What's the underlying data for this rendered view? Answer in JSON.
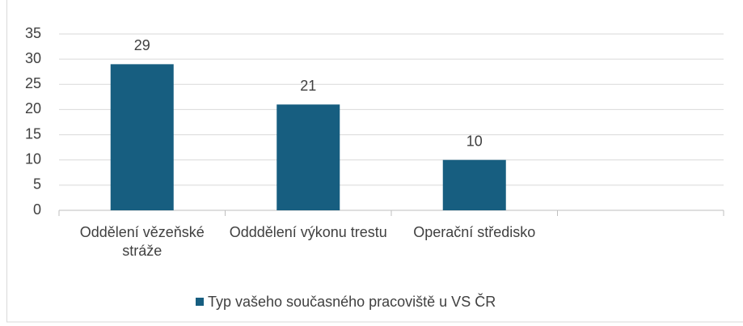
{
  "chart_data": {
    "type": "bar",
    "categories": [
      "Oddělení vězeňské stráže",
      "Odddělení výkonu trestu",
      "Operační středisko",
      null
    ],
    "series": [
      {
        "name": "Typ vašeho současného pracoviště u VS ČR",
        "color": "#175e80",
        "values": [
          29,
          21,
          10,
          null
        ]
      }
    ],
    "ylim": [
      0,
      35
    ],
    "yticks": [
      0,
      5,
      10,
      15,
      20,
      25,
      30,
      35
    ],
    "grid": true,
    "legend": "bottom"
  }
}
